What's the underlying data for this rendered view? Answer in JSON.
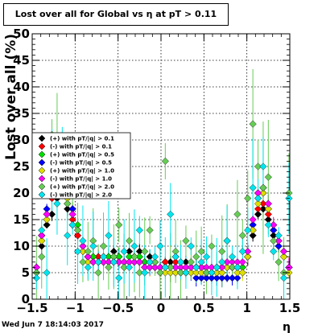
{
  "chart_data": {
    "type": "scatter",
    "title": "Lost over all for Global vs   η at pT > 0.11",
    "xlabel": "η",
    "ylabel": "Lost over all (%)",
    "xlim": [
      -1.5,
      1.5
    ],
    "ylim": [
      0,
      50
    ],
    "x_ticks": [
      -1.5,
      -1,
      -0.5,
      0,
      0.5,
      1,
      1.5
    ],
    "x_tick_labels": [
      "−1.5",
      "−1",
      "−0.5",
      "0",
      "0.5",
      "1",
      "1.5"
    ],
    "y_ticks": [
      0,
      5,
      10,
      15,
      20,
      25,
      30,
      35,
      40,
      45,
      50
    ],
    "y_tick_labels": [
      "0",
      "5",
      "10",
      "15",
      "20",
      "25",
      "30",
      "35",
      "40",
      "45",
      "50"
    ],
    "grid": true,
    "legend_position": "middle-left",
    "x": [
      -1.45,
      -1.39,
      -1.33,
      -1.27,
      -1.21,
      -1.15,
      -1.09,
      -1.03,
      -0.97,
      -0.91,
      -0.85,
      -0.79,
      -0.73,
      -0.67,
      -0.61,
      -0.55,
      -0.49,
      -0.43,
      -0.37,
      -0.31,
      -0.25,
      -0.19,
      -0.13,
      -0.07,
      -0.01,
      0.05,
      0.11,
      0.17,
      0.23,
      0.29,
      0.35,
      0.41,
      0.47,
      0.53,
      0.59,
      0.65,
      0.71,
      0.77,
      0.83,
      0.89,
      0.95,
      1.01,
      1.07,
      1.13,
      1.19,
      1.25,
      1.31,
      1.37,
      1.43,
      1.49
    ],
    "series": [
      {
        "name": "(+) with pT/|q| > 0.1",
        "color": "#000000",
        "values": [
          6,
          10,
          14,
          16,
          19,
          20,
          17,
          14,
          12,
          9,
          8,
          8,
          8,
          8,
          8,
          9,
          8,
          7,
          9,
          8,
          9,
          7,
          8,
          7,
          6,
          7,
          7,
          8,
          7,
          7,
          6,
          6,
          6,
          5,
          5,
          5,
          6,
          6,
          6,
          6,
          6,
          8,
          12,
          16,
          17,
          15,
          12,
          10,
          8,
          6
        ]
      },
      {
        "name": "(-) with pT/|q| > 0.1",
        "color": "#ff0000",
        "values": [
          6,
          11,
          15,
          19,
          21,
          21,
          18,
          15,
          12,
          9,
          8,
          8,
          8,
          7,
          8,
          8,
          8,
          7,
          8,
          8,
          8,
          7,
          7,
          7,
          6,
          7,
          6,
          7,
          6,
          6,
          6,
          6,
          6,
          5,
          5,
          6,
          6,
          6,
          6,
          6,
          6,
          8,
          13,
          17,
          18,
          16,
          13,
          10,
          8,
          6
        ]
      },
      {
        "name": "(+) with pT/|q| > 0.5",
        "color": "#00dd00",
        "values": [
          5,
          12,
          16,
          21,
          24,
          23,
          20,
          17,
          14,
          10,
          8,
          8,
          7,
          8,
          8,
          8,
          8,
          7,
          8,
          8,
          8,
          7,
          7,
          7,
          6,
          6,
          6,
          6,
          6,
          6,
          6,
          6,
          6,
          5,
          5,
          5,
          5,
          6,
          6,
          6,
          6,
          9,
          14,
          20,
          21,
          18,
          14,
          11,
          9,
          6
        ]
      },
      {
        "name": "(-) with pT/|q| > 0.5",
        "color": "#0000ff",
        "values": [
          6,
          12,
          17,
          22,
          25,
          24,
          20,
          17,
          13,
          10,
          8,
          7,
          7,
          7,
          7,
          7,
          7,
          7,
          7,
          7,
          7,
          6,
          6,
          6,
          6,
          6,
          5,
          5,
          5,
          5,
          5,
          4,
          4,
          4,
          4,
          4,
          4,
          4,
          4,
          4,
          5,
          8,
          14,
          19,
          20,
          17,
          13,
          10,
          8,
          6
        ]
      },
      {
        "name": "(+) with pT/|q| > 1.0",
        "color": "#dddd00",
        "values": [
          5,
          11,
          15,
          20,
          23,
          22,
          19,
          16,
          13,
          9,
          7,
          7,
          7,
          7,
          7,
          7,
          7,
          6,
          7,
          7,
          7,
          6,
          6,
          6,
          5,
          5,
          5,
          5,
          5,
          5,
          5,
          5,
          5,
          5,
          5,
          5,
          5,
          6,
          6,
          5,
          5,
          8,
          13,
          18,
          20,
          17,
          14,
          11,
          8,
          5
        ]
      },
      {
        "name": "(-) with pT/|q| > 1.0",
        "color": "#ff00ff",
        "values": [
          6,
          12,
          16,
          21,
          24,
          23,
          20,
          16,
          13,
          10,
          8,
          7,
          7,
          7,
          7,
          7,
          7,
          7,
          7,
          7,
          7,
          6,
          6,
          6,
          6,
          6,
          6,
          6,
          6,
          6,
          6,
          6,
          6,
          6,
          6,
          6,
          6,
          7,
          7,
          7,
          7,
          9,
          15,
          20,
          21,
          18,
          14,
          11,
          9,
          6
        ]
      },
      {
        "name": "(+) with pT/|q| > 2.0",
        "color": "#66cc55",
        "values": [
          5,
          8,
          22,
          31,
          28,
          25,
          18,
          21,
          13,
          7,
          9,
          11,
          5,
          10,
          6,
          8,
          14,
          6,
          11,
          8,
          5,
          9,
          13,
          7,
          5,
          26,
          6,
          9,
          5,
          11,
          7,
          8,
          9,
          5,
          10,
          6,
          9,
          11,
          6,
          16,
          12,
          19,
          33,
          25,
          21,
          23,
          11,
          7,
          5,
          20
        ]
      },
      {
        "name": "(-) with pT/|q| > 2.0",
        "color": "#00e5ee",
        "values": [
          4,
          13,
          5,
          24,
          18,
          26,
          12,
          14,
          9,
          11,
          6,
          10,
          7,
          8,
          12,
          7,
          4,
          9,
          6,
          10,
          13,
          5,
          7,
          8,
          10,
          6,
          16,
          8,
          7,
          5,
          10,
          6,
          7,
          8,
          5,
          6,
          7,
          11,
          8,
          6,
          9,
          13,
          21,
          19,
          25,
          14,
          9,
          12,
          4,
          19
        ]
      }
    ]
  }
}
